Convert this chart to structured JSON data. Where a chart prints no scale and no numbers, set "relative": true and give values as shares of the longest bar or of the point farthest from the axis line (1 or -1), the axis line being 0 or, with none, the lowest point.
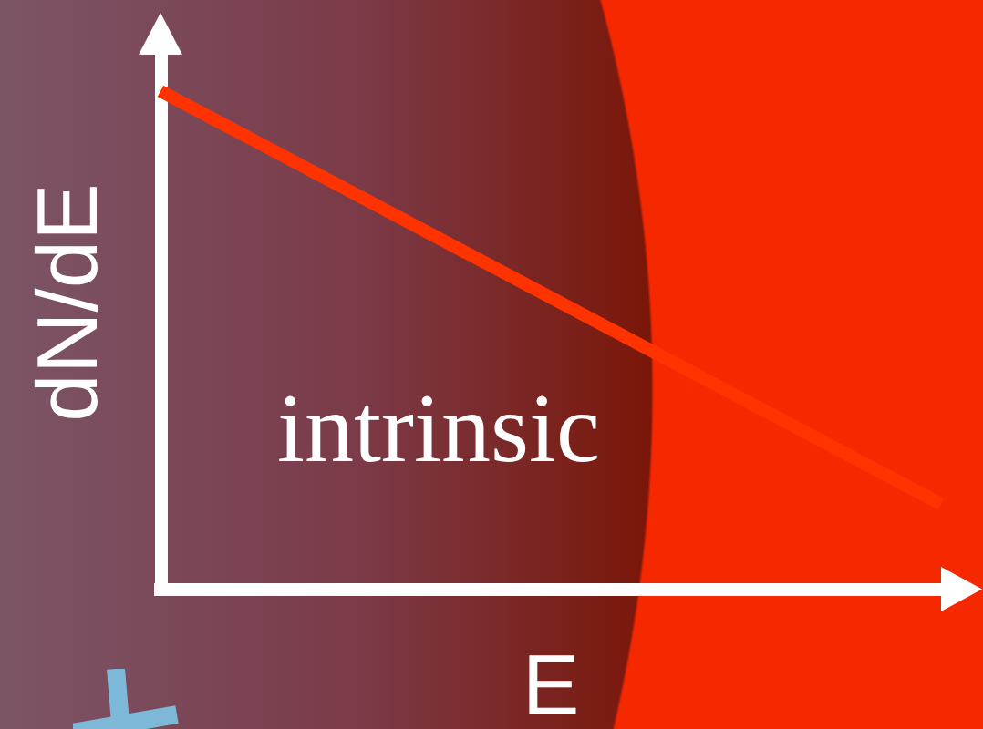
{
  "chart_data": {
    "type": "line",
    "relative": true,
    "xlabel": "E",
    "ylabel": "dN/dE",
    "categories": [
      null,
      null
    ],
    "series": [
      {
        "color": "#ff3300",
        "values": [
          1,
          0.17
        ]
      }
    ],
    "annotations": [
      "intrinsic"
    ]
  }
}
